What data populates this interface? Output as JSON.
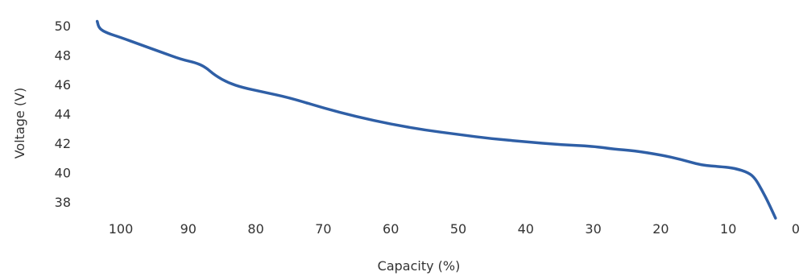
{
  "chart_data": {
    "type": "line",
    "title": "",
    "xlabel": "Capacity (%)",
    "ylabel": "Voltage (V)",
    "x_reversed": true,
    "xlim": [
      104,
      0
    ],
    "ylim": [
      37,
      51
    ],
    "grid": false,
    "x_ticks": [
      "100",
      "90",
      "80",
      "70",
      "60",
      "50",
      "40",
      "30",
      "20",
      "10",
      "0"
    ],
    "y_ticks": [
      "38",
      "40",
      "42",
      "44",
      "46",
      "48",
      "50"
    ],
    "series": [
      {
        "color": "#2f5fa6",
        "x": [
          103.5,
          103.2,
          102,
          100,
          97,
          94,
          91,
          89,
          87.5,
          86,
          84,
          82,
          79,
          75,
          70,
          65,
          60,
          55,
          50,
          45,
          40,
          35,
          30,
          27,
          24,
          20,
          17,
          14,
          11,
          9,
          7,
          6,
          5,
          4,
          3
        ],
        "y": [
          50.3,
          49.8,
          49.5,
          49.2,
          48.7,
          48.2,
          47.7,
          47.5,
          47.2,
          46.6,
          46.1,
          45.8,
          45.5,
          45.1,
          44.4,
          43.8,
          43.3,
          42.9,
          42.6,
          42.3,
          42.1,
          41.9,
          41.8,
          41.6,
          41.5,
          41.2,
          40.9,
          40.5,
          40.4,
          40.3,
          40.0,
          39.6,
          38.8,
          37.9,
          36.9
        ]
      }
    ]
  }
}
